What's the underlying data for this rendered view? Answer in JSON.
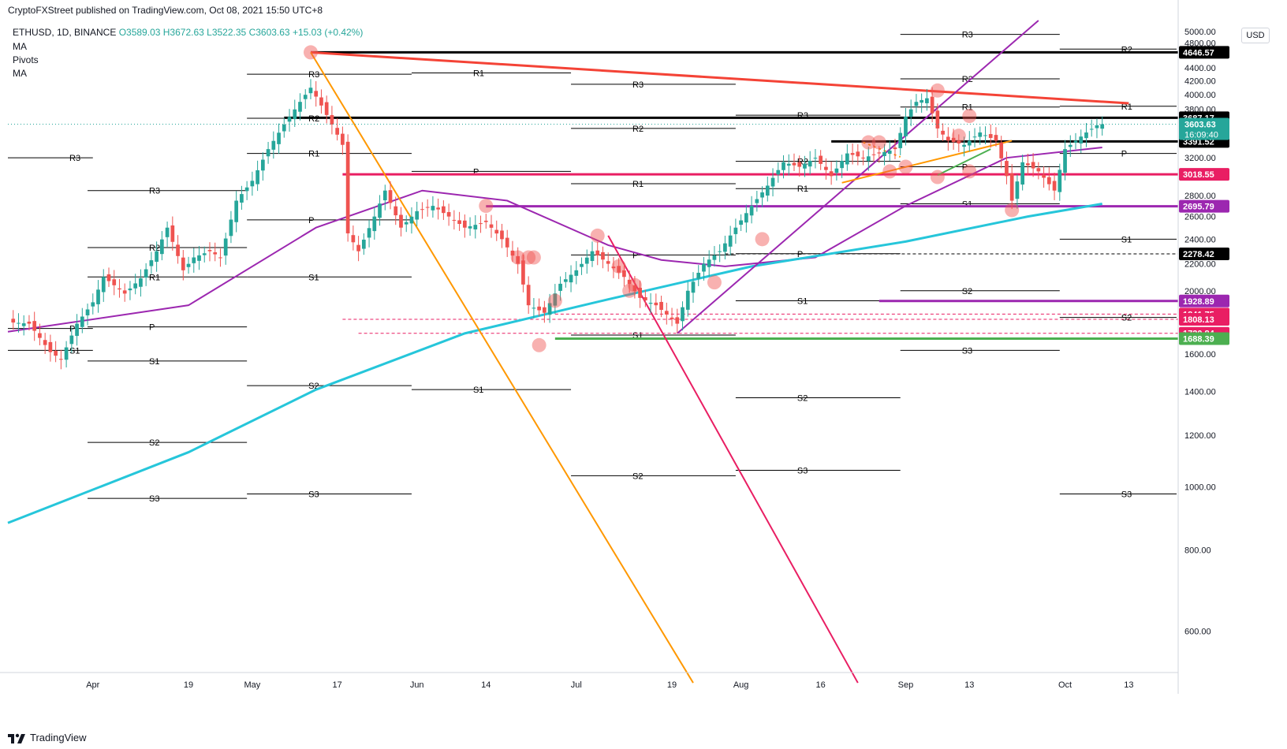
{
  "header": {
    "published": "CryptoFXStreet published on TradingView.com, Oct 08, 2021 15:50 UTC+8",
    "symbol": "ETHUSD, 1D, BINANCE",
    "open": "O3589.03",
    "high": "H3672.63",
    "low": "L3522.35",
    "close": "C3603.63",
    "change": "+15.03 (+0.42%)",
    "indicators": [
      "MA",
      "Pivots",
      "MA"
    ]
  },
  "currency": "USD",
  "footer": {
    "logo_text": "TradingView"
  },
  "colors": {
    "up": "#26a69a",
    "down": "#ef5350",
    "ma_short": "#9c27b0",
    "ma_long": "#26c6da",
    "downtrend_red": "#f44336",
    "orange": "#ff9800",
    "magenta": "#e91e63",
    "purple": "#9c27b0",
    "green": "#4caf50",
    "pivot_black": "#000000"
  },
  "chart_data": {
    "type": "candlestick",
    "symbol": "ETHUSD",
    "timeframe": "1D",
    "y_axis": {
      "scale": "log",
      "ylim": [
        520,
        5200
      ],
      "ticks": [
        600,
        800,
        1000,
        1200,
        1400,
        1600,
        1800,
        2000,
        2200,
        2400,
        2600,
        2800,
        3000,
        3200,
        3400,
        3600,
        3800,
        4000,
        4200,
        4400,
        4600,
        4800,
        5000
      ],
      "tick_labels": [
        "600.00",
        "800.00",
        "1000.00",
        "1200.00",
        "1400.00",
        "1600.00",
        "1800.00",
        "2000.00",
        "2200.00",
        "2400.00",
        "2600.00",
        "2800.00",
        "3000.00",
        "3200.00",
        "3400.00",
        "3600.00",
        "3800.00",
        "4000.00",
        "4200.00",
        "4400.00",
        "4600.00",
        "4800.00",
        "5000.00"
      ]
    },
    "x_axis": {
      "range": [
        "2021-03-16",
        "2021-10-22"
      ],
      "ticks": [
        {
          "date": "2021-04-01",
          "label": "Apr"
        },
        {
          "date": "2021-04-19",
          "label": "19"
        },
        {
          "date": "2021-05-01",
          "label": "May"
        },
        {
          "date": "2021-05-17",
          "label": "17"
        },
        {
          "date": "2021-06-01",
          "label": "Jun"
        },
        {
          "date": "2021-06-14",
          "label": "14"
        },
        {
          "date": "2021-07-01",
          "label": "Jul"
        },
        {
          "date": "2021-07-19",
          "label": "19"
        },
        {
          "date": "2021-08-01",
          "label": "Aug"
        },
        {
          "date": "2021-08-16",
          "label": "16"
        },
        {
          "date": "2021-09-01",
          "label": "Sep"
        },
        {
          "date": "2021-09-13",
          "label": "13"
        },
        {
          "date": "2021-10-01",
          "label": "Oct"
        },
        {
          "date": "2021-10-13",
          "label": "13"
        }
      ]
    },
    "close_path": [
      [
        "2021-03-16",
        1790
      ],
      [
        "2021-03-20",
        1780
      ],
      [
        "2021-03-24",
        1610
      ],
      [
        "2021-03-26",
        1570
      ],
      [
        "2021-03-29",
        1780
      ],
      [
        "2021-04-01",
        1920
      ],
      [
        "2021-04-03",
        2100
      ],
      [
        "2021-04-07",
        1980
      ],
      [
        "2021-04-10",
        2090
      ],
      [
        "2021-04-13",
        2300
      ],
      [
        "2021-04-15",
        2500
      ],
      [
        "2021-04-18",
        2150
      ],
      [
        "2021-04-20",
        2250
      ],
      [
        "2021-04-23",
        2300
      ],
      [
        "2021-04-25",
        2250
      ],
      [
        "2021-04-28",
        2750
      ],
      [
        "2021-05-01",
        2950
      ],
      [
        "2021-05-04",
        3300
      ],
      [
        "2021-05-07",
        3600
      ],
      [
        "2021-05-10",
        3900
      ],
      [
        "2021-05-12",
        4100
      ],
      [
        "2021-05-14",
        3850
      ],
      [
        "2021-05-16",
        3600
      ],
      [
        "2021-05-18",
        3350
      ],
      [
        "2021-05-19",
        2450
      ],
      [
        "2021-05-21",
        2300
      ],
      [
        "2021-05-24",
        2600
      ],
      [
        "2021-05-26",
        2850
      ],
      [
        "2021-05-29",
        2500
      ],
      [
        "2021-06-01",
        2650
      ],
      [
        "2021-06-04",
        2700
      ],
      [
        "2021-06-07",
        2600
      ],
      [
        "2021-06-10",
        2500
      ],
      [
        "2021-06-14",
        2550
      ],
      [
        "2021-06-17",
        2400
      ],
      [
        "2021-06-20",
        2200
      ],
      [
        "2021-06-22",
        1900
      ],
      [
        "2021-06-25",
        1850
      ],
      [
        "2021-06-28",
        2050
      ],
      [
        "2021-07-01",
        2150
      ],
      [
        "2021-07-04",
        2300
      ],
      [
        "2021-07-07",
        2200
      ],
      [
        "2021-07-10",
        2100
      ],
      [
        "2021-07-13",
        1950
      ],
      [
        "2021-07-16",
        1900
      ],
      [
        "2021-07-20",
        1780
      ],
      [
        "2021-07-22",
        2000
      ],
      [
        "2021-07-25",
        2200
      ],
      [
        "2021-07-28",
        2300
      ],
      [
        "2021-07-31",
        2500
      ],
      [
        "2021-08-03",
        2700
      ],
      [
        "2021-08-06",
        2900
      ],
      [
        "2021-08-09",
        3150
      ],
      [
        "2021-08-12",
        3100
      ],
      [
        "2021-08-15",
        3200
      ],
      [
        "2021-08-18",
        3000
      ],
      [
        "2021-08-21",
        3250
      ],
      [
        "2021-08-24",
        3200
      ],
      [
        "2021-08-27",
        3250
      ],
      [
        "2021-08-30",
        3300
      ],
      [
        "2021-09-01",
        3700
      ],
      [
        "2021-09-03",
        3900
      ],
      [
        "2021-09-05",
        3950
      ],
      [
        "2021-09-07",
        3550
      ],
      [
        "2021-09-09",
        3400
      ],
      [
        "2021-09-12",
        3350
      ],
      [
        "2021-09-15",
        3500
      ],
      [
        "2021-09-18",
        3400
      ],
      [
        "2021-09-20",
        3000
      ],
      [
        "2021-09-21",
        2750
      ],
      [
        "2021-09-23",
        3150
      ],
      [
        "2021-09-26",
        3050
      ],
      [
        "2021-09-29",
        2850
      ],
      [
        "2021-10-01",
        3300
      ],
      [
        "2021-10-03",
        3400
      ],
      [
        "2021-10-05",
        3500
      ],
      [
        "2021-10-07",
        3590
      ],
      [
        "2021-10-08",
        3603.63
      ]
    ],
    "moving_averages": [
      {
        "name": "MA",
        "color": "#9c27b0",
        "points": [
          [
            "2021-03-16",
            1730
          ],
          [
            "2021-04-19",
            1900
          ],
          [
            "2021-05-13",
            2500
          ],
          [
            "2021-06-02",
            2850
          ],
          [
            "2021-06-18",
            2750
          ],
          [
            "2021-07-07",
            2350
          ],
          [
            "2021-07-17",
            2230
          ],
          [
            "2021-07-29",
            2180
          ],
          [
            "2021-08-15",
            2250
          ],
          [
            "2021-09-01",
            2700
          ],
          [
            "2021-09-20",
            3200
          ],
          [
            "2021-10-08",
            3320
          ]
        ]
      },
      {
        "name": "MA",
        "color": "#26c6da",
        "points": [
          [
            "2021-03-16",
            880
          ],
          [
            "2021-04-19",
            1130
          ],
          [
            "2021-05-13",
            1410
          ],
          [
            "2021-06-10",
            1720
          ],
          [
            "2021-07-07",
            1940
          ],
          [
            "2021-08-03",
            2180
          ],
          [
            "2021-09-01",
            2380
          ],
          [
            "2021-09-24",
            2600
          ],
          [
            "2021-10-08",
            2720
          ]
        ]
      }
    ],
    "horizontal_levels": [
      {
        "value": 4646.57,
        "label": "4646.57",
        "color": "#000000",
        "from": "2021-05-12"
      },
      {
        "value": 3687.17,
        "label": "3687.17",
        "color": "#000000",
        "from": "2021-05-07"
      },
      {
        "value": 3391.52,
        "label": "3391.52",
        "color": "#000000",
        "from": "2021-08-18"
      },
      {
        "value": 3018.55,
        "label": "3018.55",
        "color": "#e91e63",
        "from": "2021-05-18"
      },
      {
        "value": 2695.79,
        "label": "2695.79",
        "color": "#9c27b0",
        "from": "2021-06-14"
      },
      {
        "value": 2278.42,
        "label": "2278.42",
        "color": "#000000",
        "from": "2021-07-29",
        "dashed": true
      },
      {
        "value": 1928.89,
        "label": "1928.89",
        "color": "#9c27b0",
        "from": "2021-08-27"
      },
      {
        "value": 1841.75,
        "label": "1841.75",
        "color": "#e91e63",
        "from": "2021-06-27",
        "dashed": true
      },
      {
        "value": 1808.13,
        "label": "1808.13",
        "color": "#e91e63",
        "from": "2021-05-18",
        "dashed": true
      },
      {
        "value": 1720.84,
        "label": "1720.84",
        "color": "#e91e63",
        "from": "2021-05-21",
        "dashed": true
      },
      {
        "value": 1688.39,
        "label": "1688.39",
        "color": "#4caf50",
        "from": "2021-06-27"
      }
    ],
    "current_price": {
      "value": 3603.63,
      "label": "3603.63",
      "countdown": "16:09:40"
    },
    "pivots": [
      {
        "label": "R3",
        "value": 3200,
        "from": "2021-03-16",
        "to": "2021-04-01"
      },
      {
        "label": "P",
        "value": 1750,
        "from": "2021-03-16",
        "to": "2021-04-01"
      },
      {
        "label": "S1",
        "value": 1620,
        "from": "2021-03-16",
        "to": "2021-04-01"
      },
      {
        "label": "R3",
        "value": 2850,
        "from": "2021-03-31",
        "to": "2021-04-30"
      },
      {
        "label": "R2",
        "value": 2330,
        "from": "2021-03-31",
        "to": "2021-04-30"
      },
      {
        "label": "R1",
        "value": 2100,
        "from": "2021-03-31",
        "to": "2021-04-30"
      },
      {
        "label": "P",
        "value": 1760,
        "from": "2021-03-31",
        "to": "2021-04-30"
      },
      {
        "label": "S1",
        "value": 1560,
        "from": "2021-03-31",
        "to": "2021-04-30"
      },
      {
        "label": "S2",
        "value": 1170,
        "from": "2021-03-31",
        "to": "2021-04-30"
      },
      {
        "label": "S3",
        "value": 960,
        "from": "2021-03-31",
        "to": "2021-04-30"
      },
      {
        "label": "R3",
        "value": 4300,
        "from": "2021-04-30",
        "to": "2021-05-31"
      },
      {
        "label": "R2",
        "value": 3680,
        "from": "2021-04-30",
        "to": "2021-05-31"
      },
      {
        "label": "R1",
        "value": 3250,
        "from": "2021-04-30",
        "to": "2021-05-31"
      },
      {
        "label": "P",
        "value": 2570,
        "from": "2021-04-30",
        "to": "2021-05-31"
      },
      {
        "label": "S1",
        "value": 2100,
        "from": "2021-04-30",
        "to": "2021-05-31"
      },
      {
        "label": "S2",
        "value": 1430,
        "from": "2021-04-30",
        "to": "2021-05-31"
      },
      {
        "label": "S3",
        "value": 975,
        "from": "2021-04-30",
        "to": "2021-05-31"
      },
      {
        "label": "R1",
        "value": 4320,
        "from": "2021-05-31",
        "to": "2021-06-30"
      },
      {
        "label": "P",
        "value": 3050,
        "from": "2021-05-31",
        "to": "2021-06-30"
      },
      {
        "label": "S1",
        "value": 1410,
        "from": "2021-05-31",
        "to": "2021-06-30"
      },
      {
        "label": "R3",
        "value": 4150,
        "from": "2021-06-30",
        "to": "2021-07-31"
      },
      {
        "label": "R2",
        "value": 3550,
        "from": "2021-06-30",
        "to": "2021-07-31"
      },
      {
        "label": "R1",
        "value": 2920,
        "from": "2021-06-30",
        "to": "2021-07-31"
      },
      {
        "label": "P",
        "value": 2270,
        "from": "2021-06-30",
        "to": "2021-07-31"
      },
      {
        "label": "S1",
        "value": 1710,
        "from": "2021-06-30",
        "to": "2021-07-31"
      },
      {
        "label": "S2",
        "value": 1040,
        "from": "2021-06-30",
        "to": "2021-07-31"
      },
      {
        "label": "R3",
        "value": 3720,
        "from": "2021-07-31",
        "to": "2021-08-31"
      },
      {
        "label": "R2",
        "value": 3160,
        "from": "2021-07-31",
        "to": "2021-08-31"
      },
      {
        "label": "R1",
        "value": 2870,
        "from": "2021-07-31",
        "to": "2021-08-31"
      },
      {
        "label": "P",
        "value": 2280,
        "from": "2021-07-31",
        "to": "2021-08-31"
      },
      {
        "label": "S1",
        "value": 1930,
        "from": "2021-07-31",
        "to": "2021-08-31"
      },
      {
        "label": "S2",
        "value": 1370,
        "from": "2021-07-31",
        "to": "2021-08-31"
      },
      {
        "label": "S3",
        "value": 1060,
        "from": "2021-07-31",
        "to": "2021-08-31"
      },
      {
        "label": "R3",
        "value": 4950,
        "from": "2021-08-31",
        "to": "2021-09-30"
      },
      {
        "label": "R2",
        "value": 4230,
        "from": "2021-08-31",
        "to": "2021-09-30"
      },
      {
        "label": "R1",
        "value": 3830,
        "from": "2021-08-31",
        "to": "2021-09-30"
      },
      {
        "label": "P",
        "value": 3100,
        "from": "2021-08-31",
        "to": "2021-09-30"
      },
      {
        "label": "S1",
        "value": 2720,
        "from": "2021-08-31",
        "to": "2021-09-30"
      },
      {
        "label": "S2",
        "value": 2000,
        "from": "2021-08-31",
        "to": "2021-09-30"
      },
      {
        "label": "S3",
        "value": 1620,
        "from": "2021-08-31",
        "to": "2021-09-30"
      },
      {
        "label": "R2",
        "value": 4700,
        "from": "2021-09-30",
        "to": "2021-10-22"
      },
      {
        "label": "R1",
        "value": 3840,
        "from": "2021-09-30",
        "to": "2021-10-22"
      },
      {
        "label": "P",
        "value": 3250,
        "from": "2021-09-30",
        "to": "2021-10-22"
      },
      {
        "label": "S1",
        "value": 2400,
        "from": "2021-09-30",
        "to": "2021-10-22"
      },
      {
        "label": "S2",
        "value": 1820,
        "from": "2021-09-30",
        "to": "2021-10-22"
      },
      {
        "label": "S3",
        "value": 975,
        "from": "2021-09-30",
        "to": "2021-10-22"
      }
    ],
    "trendlines": [
      {
        "color": "#f44336",
        "width": 3,
        "points": [
          [
            "2021-05-12",
            4646
          ],
          [
            "2021-10-13",
            3880
          ]
        ]
      },
      {
        "color": "#ff9800",
        "width": 2,
        "points": [
          [
            "2021-05-12",
            4646
          ],
          [
            "2021-07-23",
            500
          ]
        ]
      },
      {
        "color": "#e91e63",
        "width": 2,
        "points": [
          [
            "2021-07-07",
            2430
          ],
          [
            "2021-08-23",
            500
          ]
        ]
      },
      {
        "color": "#9c27b0",
        "width": 2,
        "points": [
          [
            "2021-07-20",
            1720
          ],
          [
            "2021-09-26",
            5200
          ]
        ]
      },
      {
        "color": "#ff9800",
        "width": 2,
        "points": [
          [
            "2021-08-20",
            2930
          ],
          [
            "2021-09-21",
            3400
          ]
        ]
      },
      {
        "color": "#ff9800",
        "width": 2,
        "dashed": true,
        "points": [
          [
            "2021-08-24",
            3380
          ],
          [
            "2021-08-31",
            3210
          ]
        ]
      },
      {
        "color": "#4caf50",
        "width": 2,
        "points": [
          [
            "2021-09-07",
            3010
          ],
          [
            "2021-09-17",
            3300
          ]
        ]
      }
    ],
    "markers": [
      [
        "2021-05-12",
        4646
      ],
      [
        "2021-06-14",
        2700
      ],
      [
        "2021-06-20",
        2250
      ],
      [
        "2021-06-22",
        2250
      ],
      [
        "2021-06-23",
        2250
      ],
      [
        "2021-06-24",
        1650
      ],
      [
        "2021-06-27",
        1930
      ],
      [
        "2021-07-05",
        2430
      ],
      [
        "2021-07-09",
        2180
      ],
      [
        "2021-07-11",
        2000
      ],
      [
        "2021-07-12",
        2040
      ],
      [
        "2021-07-27",
        2060
      ],
      [
        "2021-08-05",
        2400
      ],
      [
        "2021-08-25",
        3380
      ],
      [
        "2021-08-27",
        3380
      ],
      [
        "2021-08-29",
        3050
      ],
      [
        "2021-09-01",
        3100
      ],
      [
        "2021-09-07",
        4060
      ],
      [
        "2021-09-07",
        2990
      ],
      [
        "2021-09-11",
        3460
      ],
      [
        "2021-09-13",
        3050
      ],
      [
        "2021-09-13",
        3710
      ],
      [
        "2021-09-21",
        2660
      ]
    ]
  }
}
